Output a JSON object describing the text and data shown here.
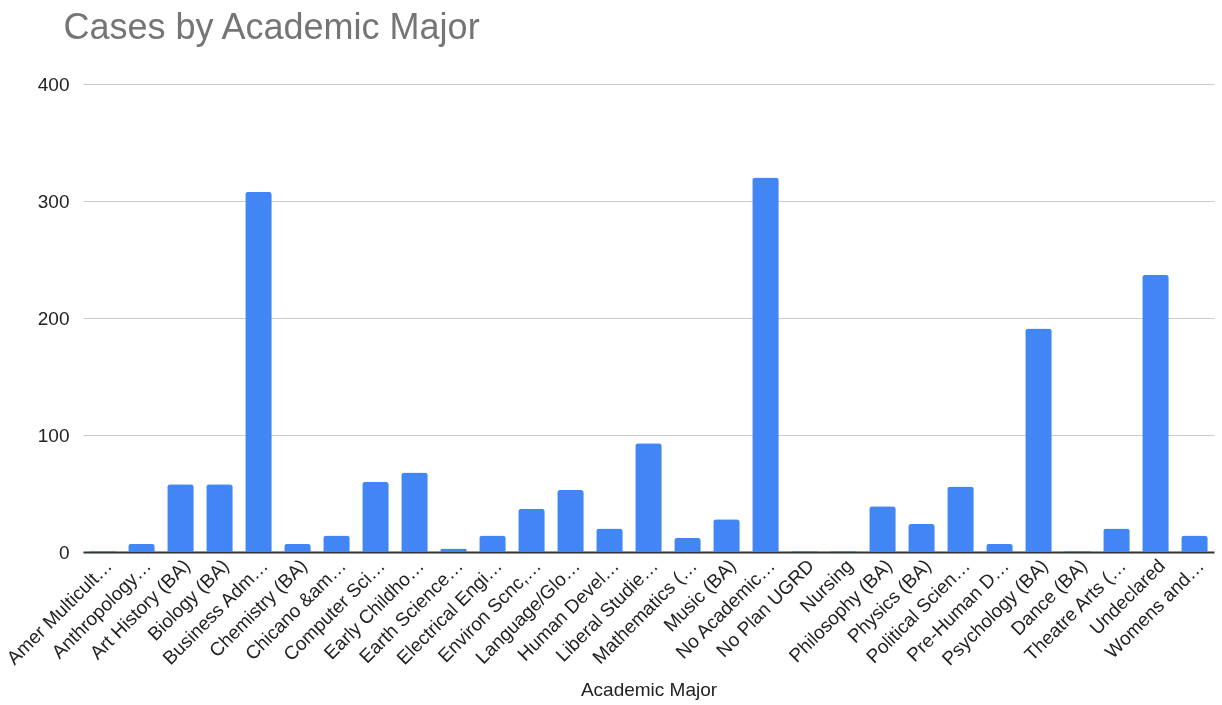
{
  "chart_data": {
    "type": "bar",
    "title": "Cases by  Academic Major",
    "xlabel": "Academic Major",
    "categories": [
      "Amer Multicult…",
      "Anthropology…",
      "Art History (BA)",
      "Biology (BA)",
      "Business Adm…",
      "Chemistry (BA)",
      "Chicano &am…",
      "Computer Sci…",
      "Early Childho…",
      "Earth Science…",
      "Electrical Engi…",
      "Environ Scnc,…",
      "Language/Glo…",
      "Human Devel…",
      "Liberal Studie…",
      "Mathematics (…",
      "Music (BA)",
      "No Academic…",
      "No Plan UGRD",
      "Nursing",
      "Philosophy (BA)",
      "Physics (BA)",
      "Political Scien…",
      "Pre-Human D…",
      "Psychology (BA)",
      "Dance (BA)",
      "Theatre Arts (…",
      "Undeclared",
      "Womens and…"
    ],
    "values": [
      1,
      7,
      58,
      58,
      308,
      7,
      14,
      60,
      68,
      3,
      14,
      37,
      53,
      20,
      93,
      12,
      28,
      320,
      1,
      1,
      39,
      24,
      56,
      7,
      191,
      1,
      20,
      237,
      14
    ],
    "color": "#4285f4",
    "ylim": [
      0,
      400
    ],
    "yticks": [
      0,
      100,
      200,
      300,
      400
    ],
    "grid": "y"
  }
}
